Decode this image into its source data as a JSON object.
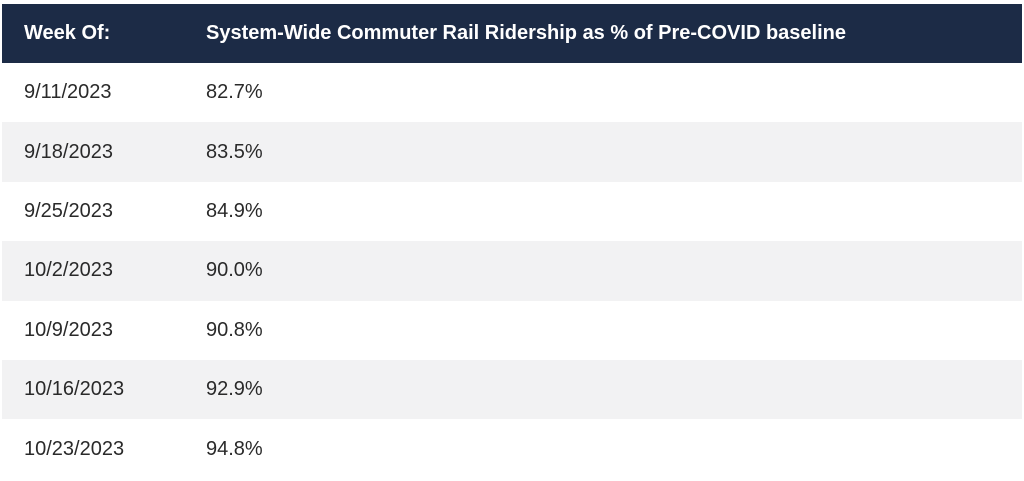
{
  "table": {
    "headers": [
      "Week Of:",
      "System-Wide Commuter Rail Ridership as % of Pre-COVID baseline"
    ],
    "rows": [
      [
        "9/11/2023",
        "82.7%"
      ],
      [
        "9/18/2023",
        "83.5%"
      ],
      [
        "9/25/2023",
        "84.9%"
      ],
      [
        "10/2/2023",
        "90.0%"
      ],
      [
        "10/9/2023",
        "90.8%"
      ],
      [
        "10/16/2023",
        "92.9%"
      ],
      [
        "10/23/2023",
        "94.8%"
      ]
    ]
  },
  "colors": {
    "header_bg": "#1c2b46",
    "header_text": "#ffffff",
    "row_alt_bg": "#f2f2f3",
    "row_bg": "#ffffff",
    "cell_text": "#2a2a2a"
  }
}
